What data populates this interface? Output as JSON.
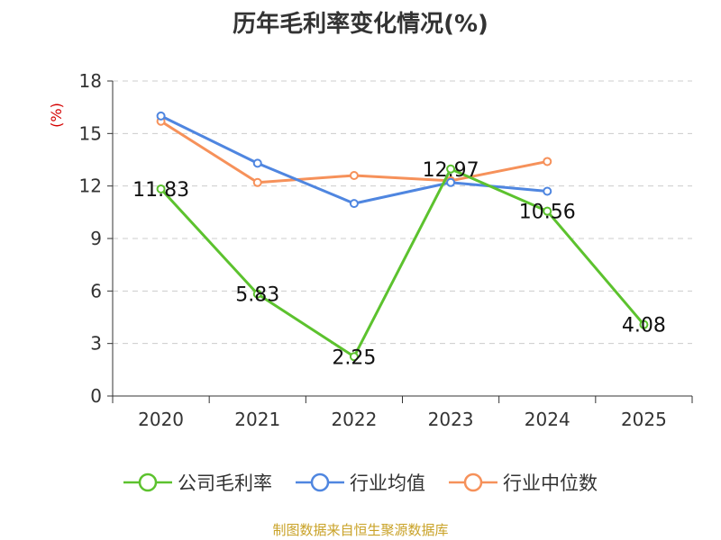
{
  "chart_data": {
    "type": "line",
    "title": "历年毛利率变化情况(%)",
    "ylabel": "(%)",
    "xlabel": "",
    "categories": [
      "2020",
      "2021",
      "2022",
      "2023",
      "2024",
      "2025"
    ],
    "ylim": [
      0,
      18
    ],
    "yticks": [
      0,
      3,
      6,
      9,
      12,
      15,
      18
    ],
    "grid": true,
    "legend_position": "bottom",
    "series": [
      {
        "name": "公司毛利率",
        "color": "#5cc22e",
        "values": [
          11.83,
          5.83,
          2.25,
          12.97,
          10.56,
          4.08
        ],
        "data_labels": [
          "11.83",
          "5.83",
          "2.25",
          "12.97",
          "10.56",
          "4.08"
        ]
      },
      {
        "name": "行业均值",
        "color": "#4f86e0",
        "values": [
          16.0,
          13.3,
          11.0,
          12.2,
          11.7,
          null
        ]
      },
      {
        "name": "行业中位数",
        "color": "#f6915a",
        "values": [
          15.7,
          12.2,
          12.6,
          12.3,
          13.4,
          null
        ]
      }
    ]
  },
  "source_text": "制图数据来自恒生聚源数据库"
}
